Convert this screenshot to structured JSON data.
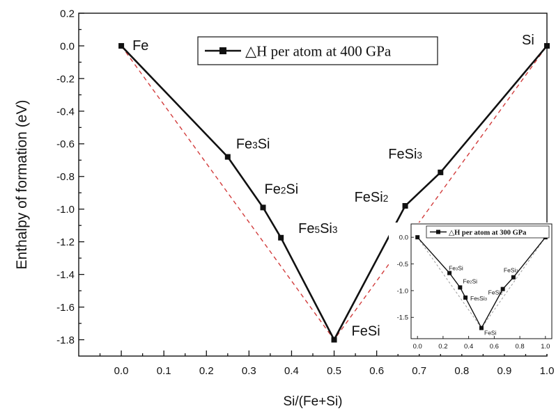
{
  "chart_data": [
    {
      "type": "line",
      "xlabel": "Si/(Fe+Si)",
      "ylabel": "Enthalpy of formation (eV)",
      "xlim": [
        -0.1,
        1.0
      ],
      "ylim": [
        -1.9,
        0.2
      ],
      "xticks": [
        0.0,
        0.1,
        0.2,
        0.3,
        0.4,
        0.5,
        0.6,
        0.7,
        0.8,
        0.9,
        1.0
      ],
      "yticks": [
        0.2,
        0.0,
        -0.2,
        -0.4,
        -0.6,
        -0.8,
        -1.0,
        -1.2,
        -1.4,
        -1.6,
        -1.8
      ],
      "legend": {
        "label": "△H per atom at 400 GPa",
        "position": "top"
      },
      "series": [
        {
          "name": "△H per atom at 400 GPa",
          "x": [
            0.0,
            0.25,
            0.333,
            0.375,
            0.5,
            0.667,
            0.75,
            1.0
          ],
          "y": [
            0.0,
            -0.68,
            -0.99,
            -1.175,
            -1.8,
            -0.98,
            -0.775,
            0.0
          ],
          "point_labels": [
            {
              "main": "Fe",
              "sub": "",
              "tail": ""
            },
            {
              "main": "Fe",
              "sub": "3",
              "tail": "Si"
            },
            {
              "main": "Fe",
              "sub": "2",
              "tail": "Si"
            },
            {
              "main": "Fe",
              "sub": "5",
              "tail": "Si3"
            },
            {
              "main": "FeSi",
              "sub": "",
              "tail": ""
            },
            {
              "main": "FeSi",
              "sub": "2",
              "tail": ""
            },
            {
              "main": "FeSi",
              "sub": "3",
              "tail": ""
            },
            {
              "main": "Si",
              "sub": "",
              "tail": ""
            }
          ]
        }
      ],
      "reference_line": {
        "x": [
          0.0,
          0.5,
          1.0
        ],
        "y": [
          0.0,
          -1.8,
          0.0
        ],
        "style": "dashed"
      },
      "colors": {
        "series": "#111111",
        "reference": "#d23c3c"
      }
    },
    {
      "type": "line",
      "inset": true,
      "xlim": [
        -0.05,
        1.05
      ],
      "ylim": [
        -1.9,
        0.25
      ],
      "xticks": [
        0.0,
        0.2,
        0.4,
        0.6,
        0.8,
        1.0
      ],
      "yticks": [
        0.0,
        -0.5,
        -1.0,
        -1.5
      ],
      "legend": {
        "label": "△H per atom at 300 GPa",
        "position": "top"
      },
      "series": [
        {
          "name": "△H per atom at 300 GPa",
          "x": [
            0.0,
            0.25,
            0.333,
            0.375,
            0.5,
            0.667,
            0.75,
            1.0
          ],
          "y": [
            0.0,
            -0.67,
            -0.94,
            -1.13,
            -1.7,
            -0.97,
            -0.75,
            0.0
          ],
          "point_labels": [
            {
              "main": "",
              "sub": "",
              "tail": ""
            },
            {
              "main": "Fe",
              "sub": "3",
              "tail": "Si"
            },
            {
              "main": "Fe",
              "sub": "2",
              "tail": "Si"
            },
            {
              "main": "Fe",
              "sub": "5",
              "tail": "Si3"
            },
            {
              "main": "FeSi",
              "sub": "",
              "tail": ""
            },
            {
              "main": "FeSi",
              "sub": "2",
              "tail": ""
            },
            {
              "main": "FeSi",
              "sub": "3",
              "tail": ""
            },
            {
              "main": "",
              "sub": "",
              "tail": ""
            }
          ]
        }
      ],
      "reference_line": {
        "x": [
          0.0,
          0.5,
          1.0
        ],
        "y": [
          0.0,
          -1.7,
          0.0
        ],
        "style": "dashed"
      },
      "colors": {
        "series": "#111111",
        "reference": "#9a9a9a"
      }
    }
  ]
}
